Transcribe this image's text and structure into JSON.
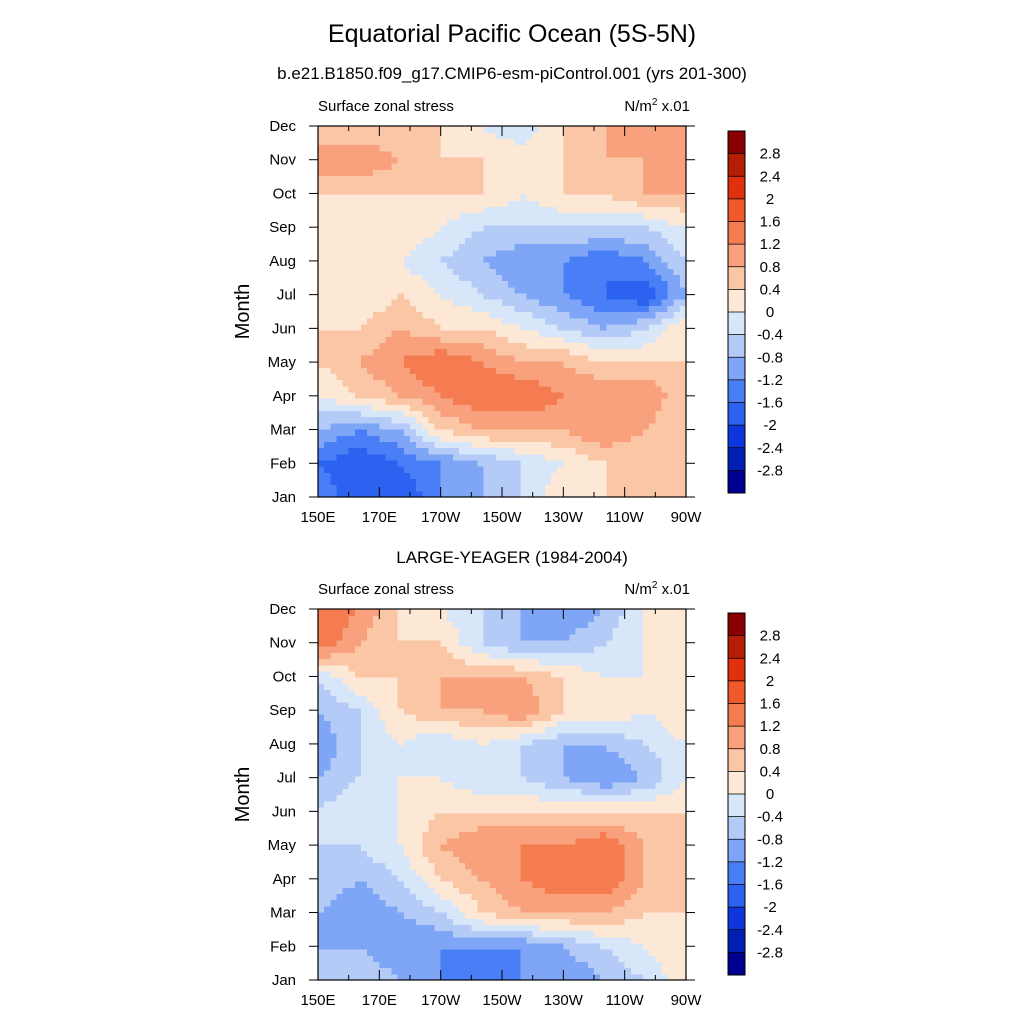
{
  "title": "Equatorial Pacific Ocean (5S-5N)",
  "subtitle": "b.e21.B1850.f09_g17.CMIP6-esm-piControl.001 (yrs 201-300)",
  "chart_data": [
    {
      "type": "heatmap",
      "title": "b.e21.B1850.f09_g17.CMIP6-esm-piControl.001 (yrs 201-300)",
      "left_string": "Surface zonal stress",
      "units": "N/m",
      "units_exp": "2",
      "units_scale": " x.01",
      "ylabel": "Month",
      "xticks": [
        "150E",
        "170E",
        "170W",
        "150W",
        "130W",
        "110W",
        "90W"
      ],
      "yticks": [
        "Jan",
        "Feb",
        "Mar",
        "Apr",
        "May",
        "Jun",
        "Jul",
        "Aug",
        "Sep",
        "Oct",
        "Nov",
        "Dec"
      ],
      "x_lon": [
        150,
        170,
        190,
        210,
        230,
        250,
        270
      ],
      "levels": [
        "2.8",
        "2.4",
        "2",
        "1.6",
        "1.2",
        "0.8",
        "0.4",
        "0",
        "-0.4",
        "-0.8",
        "-1.2",
        "-1.6",
        "-2",
        "-2.4",
        "-2.8"
      ],
      "values": [
        [
          -1.2,
          -2.0,
          -2.0,
          -1.2,
          -0.8,
          -0.4,
          0.4,
          0.4,
          0.4,
          0.4
        ],
        [
          -1.6,
          -2.0,
          -1.6,
          -1.2,
          -0.8,
          -0.4,
          0.0,
          0.4,
          0.4,
          0.4
        ],
        [
          -0.8,
          -1.2,
          -0.8,
          0.4,
          0.8,
          0.8,
          0.8,
          1.2,
          0.8,
          0.4
        ],
        [
          0.0,
          0.4,
          0.8,
          1.2,
          1.6,
          1.6,
          1.2,
          1.2,
          1.2,
          0.4
        ],
        [
          0.4,
          0.8,
          1.2,
          1.6,
          1.2,
          0.8,
          0.8,
          0.4,
          0.4,
          0.4
        ],
        [
          0.4,
          0.4,
          0.8,
          0.4,
          0.4,
          0.0,
          -0.4,
          -0.8,
          -0.4,
          0.4
        ],
        [
          0.0,
          0.0,
          0.4,
          0.0,
          -0.4,
          -0.8,
          -1.2,
          -1.6,
          -2.0,
          -0.8
        ],
        [
          0.0,
          0.4,
          0.0,
          -0.4,
          -0.8,
          -1.2,
          -1.2,
          -1.6,
          -1.2,
          -0.4
        ],
        [
          0.0,
          0.0,
          0.4,
          0.0,
          -0.4,
          -0.4,
          -0.4,
          -0.4,
          -0.4,
          0.0
        ],
        [
          0.4,
          0.4,
          0.4,
          0.4,
          0.4,
          0.0,
          0.4,
          0.4,
          0.8,
          0.8
        ],
        [
          1.2,
          1.2,
          0.8,
          0.4,
          0.4,
          0.4,
          0.4,
          0.8,
          0.8,
          0.8
        ],
        [
          0.4,
          0.4,
          0.4,
          0.4,
          0.0,
          -0.4,
          0.4,
          0.8,
          0.8,
          0.8
        ]
      ]
    },
    {
      "type": "heatmap",
      "title": "LARGE-YEAGER (1984-2004)",
      "left_string": "Surface zonal stress",
      "units": "N/m",
      "units_exp": "2",
      "units_scale": " x.01",
      "ylabel": "Month",
      "xticks": [
        "150E",
        "170E",
        "170W",
        "150W",
        "130W",
        "110W",
        "90W"
      ],
      "yticks": [
        "Jan",
        "Feb",
        "Mar",
        "Apr",
        "May",
        "Jun",
        "Jul",
        "Aug",
        "Sep",
        "Oct",
        "Nov",
        "Dec"
      ],
      "x_lon": [
        150,
        170,
        190,
        210,
        230,
        250,
        270
      ],
      "levels": [
        "2.8",
        "2.4",
        "2",
        "1.6",
        "1.2",
        "0.8",
        "0.4",
        "0",
        "-0.4",
        "-0.8",
        "-1.2",
        "-1.6",
        "-2",
        "-2.4",
        "-2.8"
      ],
      "values": [
        [
          -0.4,
          -0.4,
          -0.8,
          -1.2,
          -1.6,
          -1.2,
          -1.2,
          -0.8,
          -0.4,
          0.4
        ],
        [
          -0.8,
          -0.8,
          -1.2,
          -1.2,
          -1.2,
          -1.2,
          -0.8,
          -0.4,
          0.0,
          0.4
        ],
        [
          -0.8,
          -1.2,
          -0.8,
          -0.4,
          0.4,
          0.8,
          0.8,
          0.8,
          0.4,
          0.4
        ],
        [
          -0.4,
          -0.8,
          -0.4,
          0.4,
          0.8,
          1.2,
          1.6,
          1.6,
          0.8,
          0.4
        ],
        [
          -0.4,
          -0.4,
          0.0,
          0.8,
          1.2,
          1.2,
          1.2,
          1.6,
          0.8,
          0.4
        ],
        [
          -0.4,
          0.0,
          0.0,
          0.4,
          0.4,
          0.4,
          0.4,
          0.4,
          0.4,
          0.4
        ],
        [
          -0.8,
          -0.4,
          0.0,
          0.0,
          -0.4,
          -0.4,
          -0.8,
          -1.2,
          -0.8,
          0.0
        ],
        [
          -1.2,
          -0.4,
          0.0,
          -0.4,
          0.0,
          -0.4,
          -0.8,
          -0.8,
          -0.4,
          0.0
        ],
        [
          -0.8,
          -0.4,
          0.4,
          0.8,
          0.8,
          1.2,
          0.4,
          0.4,
          0.0,
          0.4
        ],
        [
          -0.4,
          0.4,
          0.4,
          0.8,
          0.8,
          0.8,
          0.4,
          0.0,
          0.0,
          0.4
        ],
        [
          1.6,
          0.8,
          0.4,
          0.4,
          -0.4,
          -0.8,
          -0.8,
          -0.4,
          0.0,
          0.4
        ],
        [
          1.6,
          1.2,
          0.4,
          0.0,
          -0.4,
          -0.8,
          -1.2,
          -0.8,
          0.0,
          0.4
        ]
      ]
    }
  ],
  "colors": {
    "palette": [
      "#000090",
      "#0020b4",
      "#0d37dc",
      "#2b62f0",
      "#4a7ef6",
      "#7fa5f7",
      "#b4caf7",
      "#d7e6f9",
      "#fde8d5",
      "#fbc6a6",
      "#f9a07c",
      "#f57c50",
      "#f05a28",
      "#e0300e",
      "#b51d04",
      "#8a0000"
    ],
    "axis": "#000000"
  }
}
